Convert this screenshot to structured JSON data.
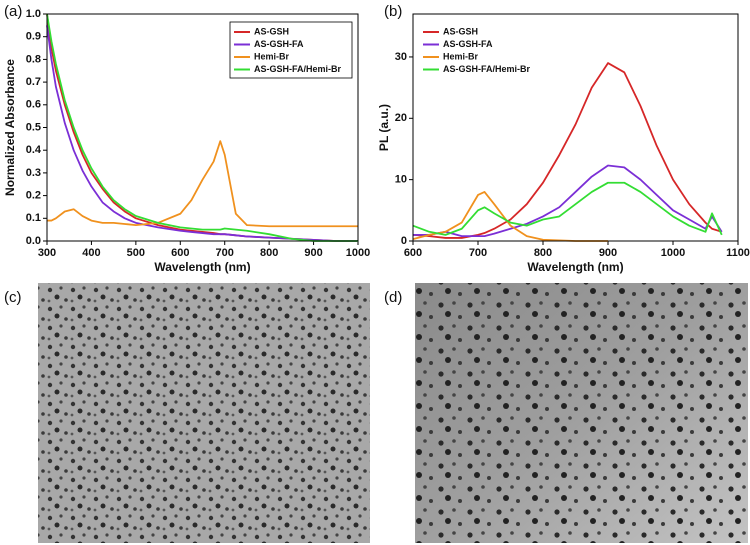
{
  "chart_data": [
    {
      "type": "line",
      "panel_label": "(a)",
      "x_label": "Wavelength (nm)",
      "y_label": "Normalized Absorbance",
      "x": [
        300,
        310,
        320,
        340,
        360,
        380,
        400,
        425,
        450,
        475,
        500,
        550,
        600,
        625,
        650,
        675,
        690,
        700,
        725,
        750,
        800,
        850,
        900,
        950,
        1000
      ],
      "xlim": [
        300,
        1000
      ],
      "xticks": [
        300,
        400,
        500,
        600,
        700,
        800,
        900,
        1000
      ],
      "ylim": [
        0,
        1
      ],
      "yticks": [
        {
          "value": 0,
          "label": "0.0"
        },
        0.1,
        0.2,
        0.3,
        0.4,
        0.5,
        0.6,
        0.7,
        0.8,
        0.9,
        {
          "value": 1,
          "label": "1.0"
        }
      ],
      "legend": "upper right",
      "series": [
        {
          "name": "AS-GSH",
          "color": "#d62728",
          "values": [
            1.0,
            0.85,
            0.75,
            0.6,
            0.48,
            0.38,
            0.3,
            0.23,
            0.17,
            0.13,
            0.1,
            0.07,
            0.05,
            0.045,
            0.04,
            0.035,
            0.03,
            0.03,
            0.025,
            0.02,
            0.015,
            0.01,
            0.005,
            0,
            0
          ]
        },
        {
          "name": "AS-GSH-FA",
          "color": "#7b2fd6",
          "values": [
            0.95,
            0.8,
            0.68,
            0.52,
            0.4,
            0.31,
            0.24,
            0.17,
            0.13,
            0.1,
            0.08,
            0.06,
            0.045,
            0.04,
            0.035,
            0.03,
            0.03,
            0.03,
            0.025,
            0.02,
            0.015,
            0.01,
            0.005,
            0,
            0
          ]
        },
        {
          "name": "Hemi-Br",
          "color": "#f0911e",
          "values": [
            0.09,
            0.09,
            0.1,
            0.13,
            0.14,
            0.11,
            0.09,
            0.08,
            0.08,
            0.075,
            0.07,
            0.08,
            0.12,
            0.18,
            0.27,
            0.35,
            0.44,
            0.38,
            0.12,
            0.07,
            0.065,
            0.065,
            0.065,
            0.065,
            0.065
          ]
        },
        {
          "name": "AS-GSH-FA/Hemi-Br",
          "color": "#33dd33",
          "values": [
            1.0,
            0.88,
            0.78,
            0.62,
            0.5,
            0.4,
            0.32,
            0.24,
            0.18,
            0.14,
            0.11,
            0.08,
            0.06,
            0.055,
            0.05,
            0.05,
            0.05,
            0.055,
            0.05,
            0.045,
            0.03,
            0.01,
            0,
            0,
            0
          ]
        }
      ]
    },
    {
      "type": "line",
      "panel_label": "(b)",
      "x_label": "Wavelength (nm)",
      "y_label": "PL (a.u.)",
      "x": [
        600,
        625,
        650,
        675,
        700,
        710,
        725,
        750,
        775,
        800,
        825,
        850,
        875,
        900,
        925,
        950,
        975,
        1000,
        1025,
        1050,
        1060,
        1075,
        1100
      ],
      "xlim": [
        600,
        1100
      ],
      "xticks": [
        600,
        700,
        800,
        900,
        1000,
        1100
      ],
      "ylim": [
        0,
        37
      ],
      "yticks": [
        0,
        10,
        20,
        30
      ],
      "legend": "upper left",
      "series": [
        {
          "name": "AS-GSH",
          "color": "#d62728",
          "values": [
            1,
            0.8,
            0.5,
            0.5,
            1,
            1.3,
            2,
            3.5,
            6,
            9.5,
            14,
            19,
            25,
            29,
            27.5,
            22,
            15.5,
            10,
            6,
            3,
            2,
            1.5,
            null
          ]
        },
        {
          "name": "AS-GSH-FA",
          "color": "#7b2fd6",
          "values": [
            1,
            1,
            1.5,
            0.8,
            0.8,
            0.8,
            1.2,
            2,
            2.8,
            4,
            5.5,
            8,
            10.5,
            12.3,
            12,
            10,
            7.5,
            5,
            3.5,
            2,
            4,
            1.5,
            null
          ]
        },
        {
          "name": "Hemi-Br",
          "color": "#f0911e",
          "values": [
            0.3,
            1,
            1.5,
            3,
            7.5,
            8,
            6,
            2.5,
            0.8,
            0.2,
            0.1,
            0,
            0,
            0,
            null,
            null,
            null,
            null,
            null,
            null,
            null,
            null,
            null
          ]
        },
        {
          "name": "AS-GSH-FA/Hemi-Br",
          "color": "#33dd33",
          "values": [
            2.5,
            1.5,
            1,
            2,
            5,
            5.5,
            4.5,
            3,
            2.5,
            3.5,
            4,
            6,
            8,
            9.5,
            9.5,
            8,
            6,
            4,
            2.5,
            1.5,
            4.5,
            1,
            null
          ]
        }
      ]
    }
  ],
  "images": [
    {
      "panel_label": "(c)"
    },
    {
      "panel_label": "(d)"
    }
  ]
}
